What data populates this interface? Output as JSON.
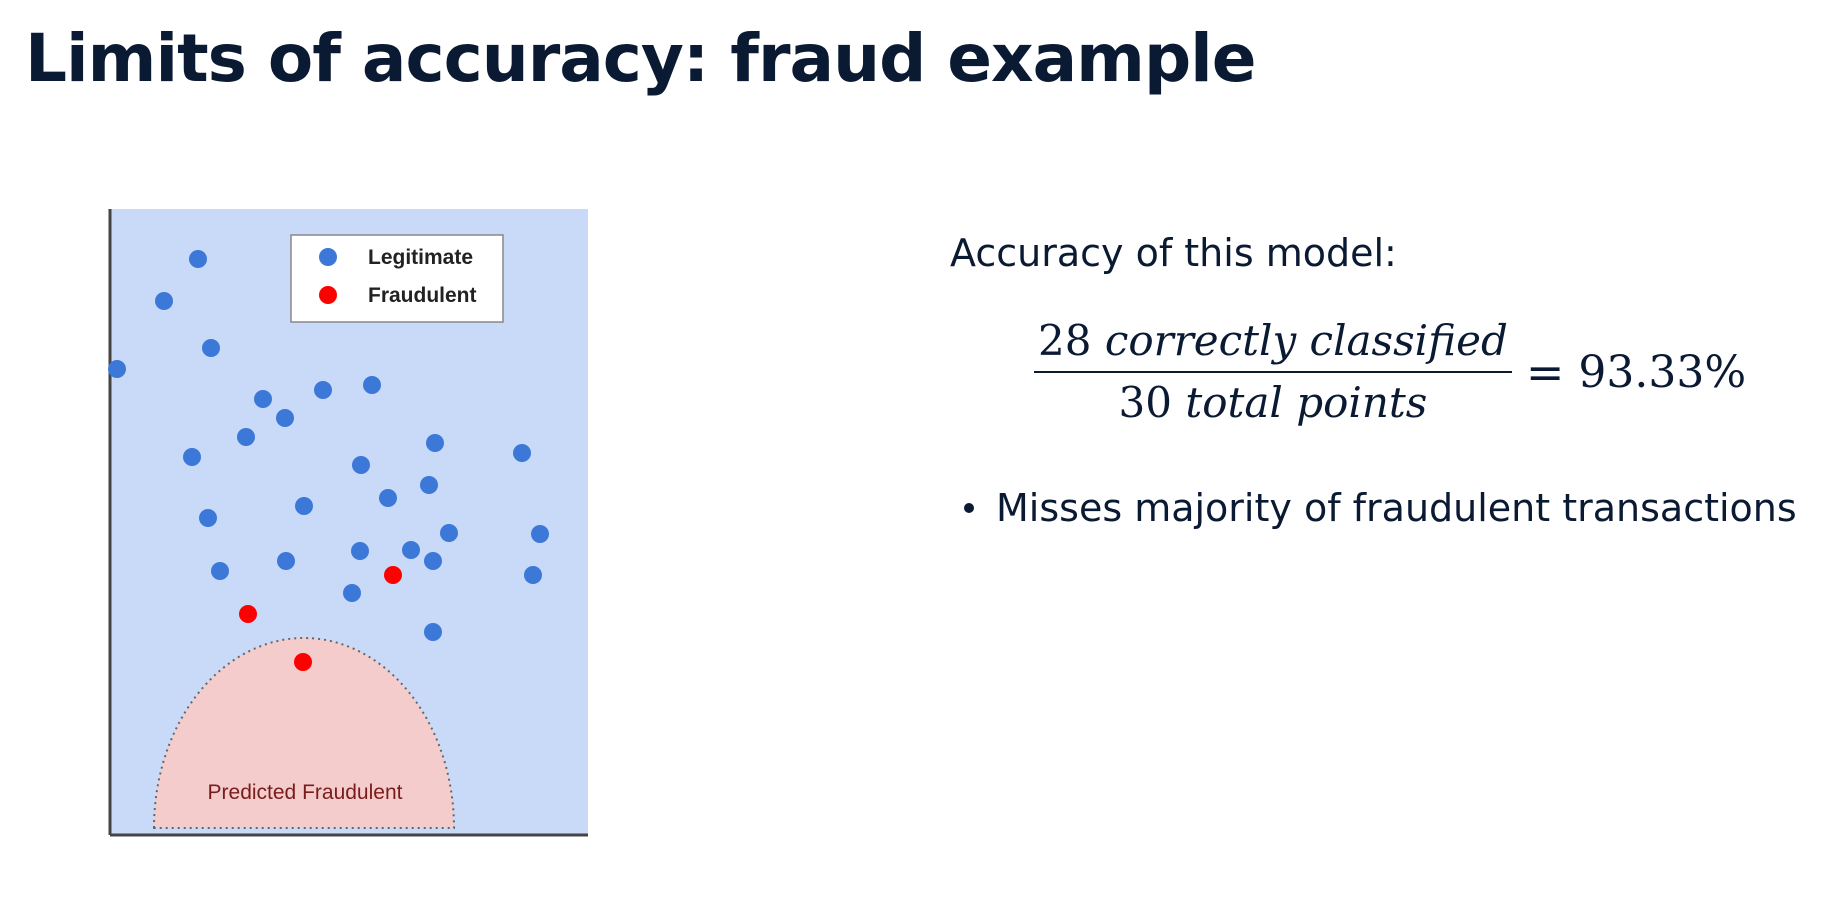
{
  "slide": {
    "title": "Limits of accuracy: fraud example"
  },
  "diagram": {
    "legend": {
      "legitimate_label": "Legitimate",
      "fraudulent_label": "Fraudulent"
    },
    "region_label": "Predicted Fraudulent",
    "colors": {
      "background": "#c9daf8",
      "region_fill": "#f4cccc",
      "region_border": "#666666",
      "legitimate": "#3c78d8",
      "fraudulent": "#ff0000",
      "region_text": "#7a1c1c"
    }
  },
  "accuracy": {
    "label": "Accuracy of this model:",
    "numerator_count": "28",
    "numerator_text": "correctly classified",
    "denominator_count": "30",
    "denominator_text": "total points",
    "equals": "=",
    "result": "93.33%"
  },
  "bullets": [
    "Misses majority of fraudulent transactions"
  ]
}
